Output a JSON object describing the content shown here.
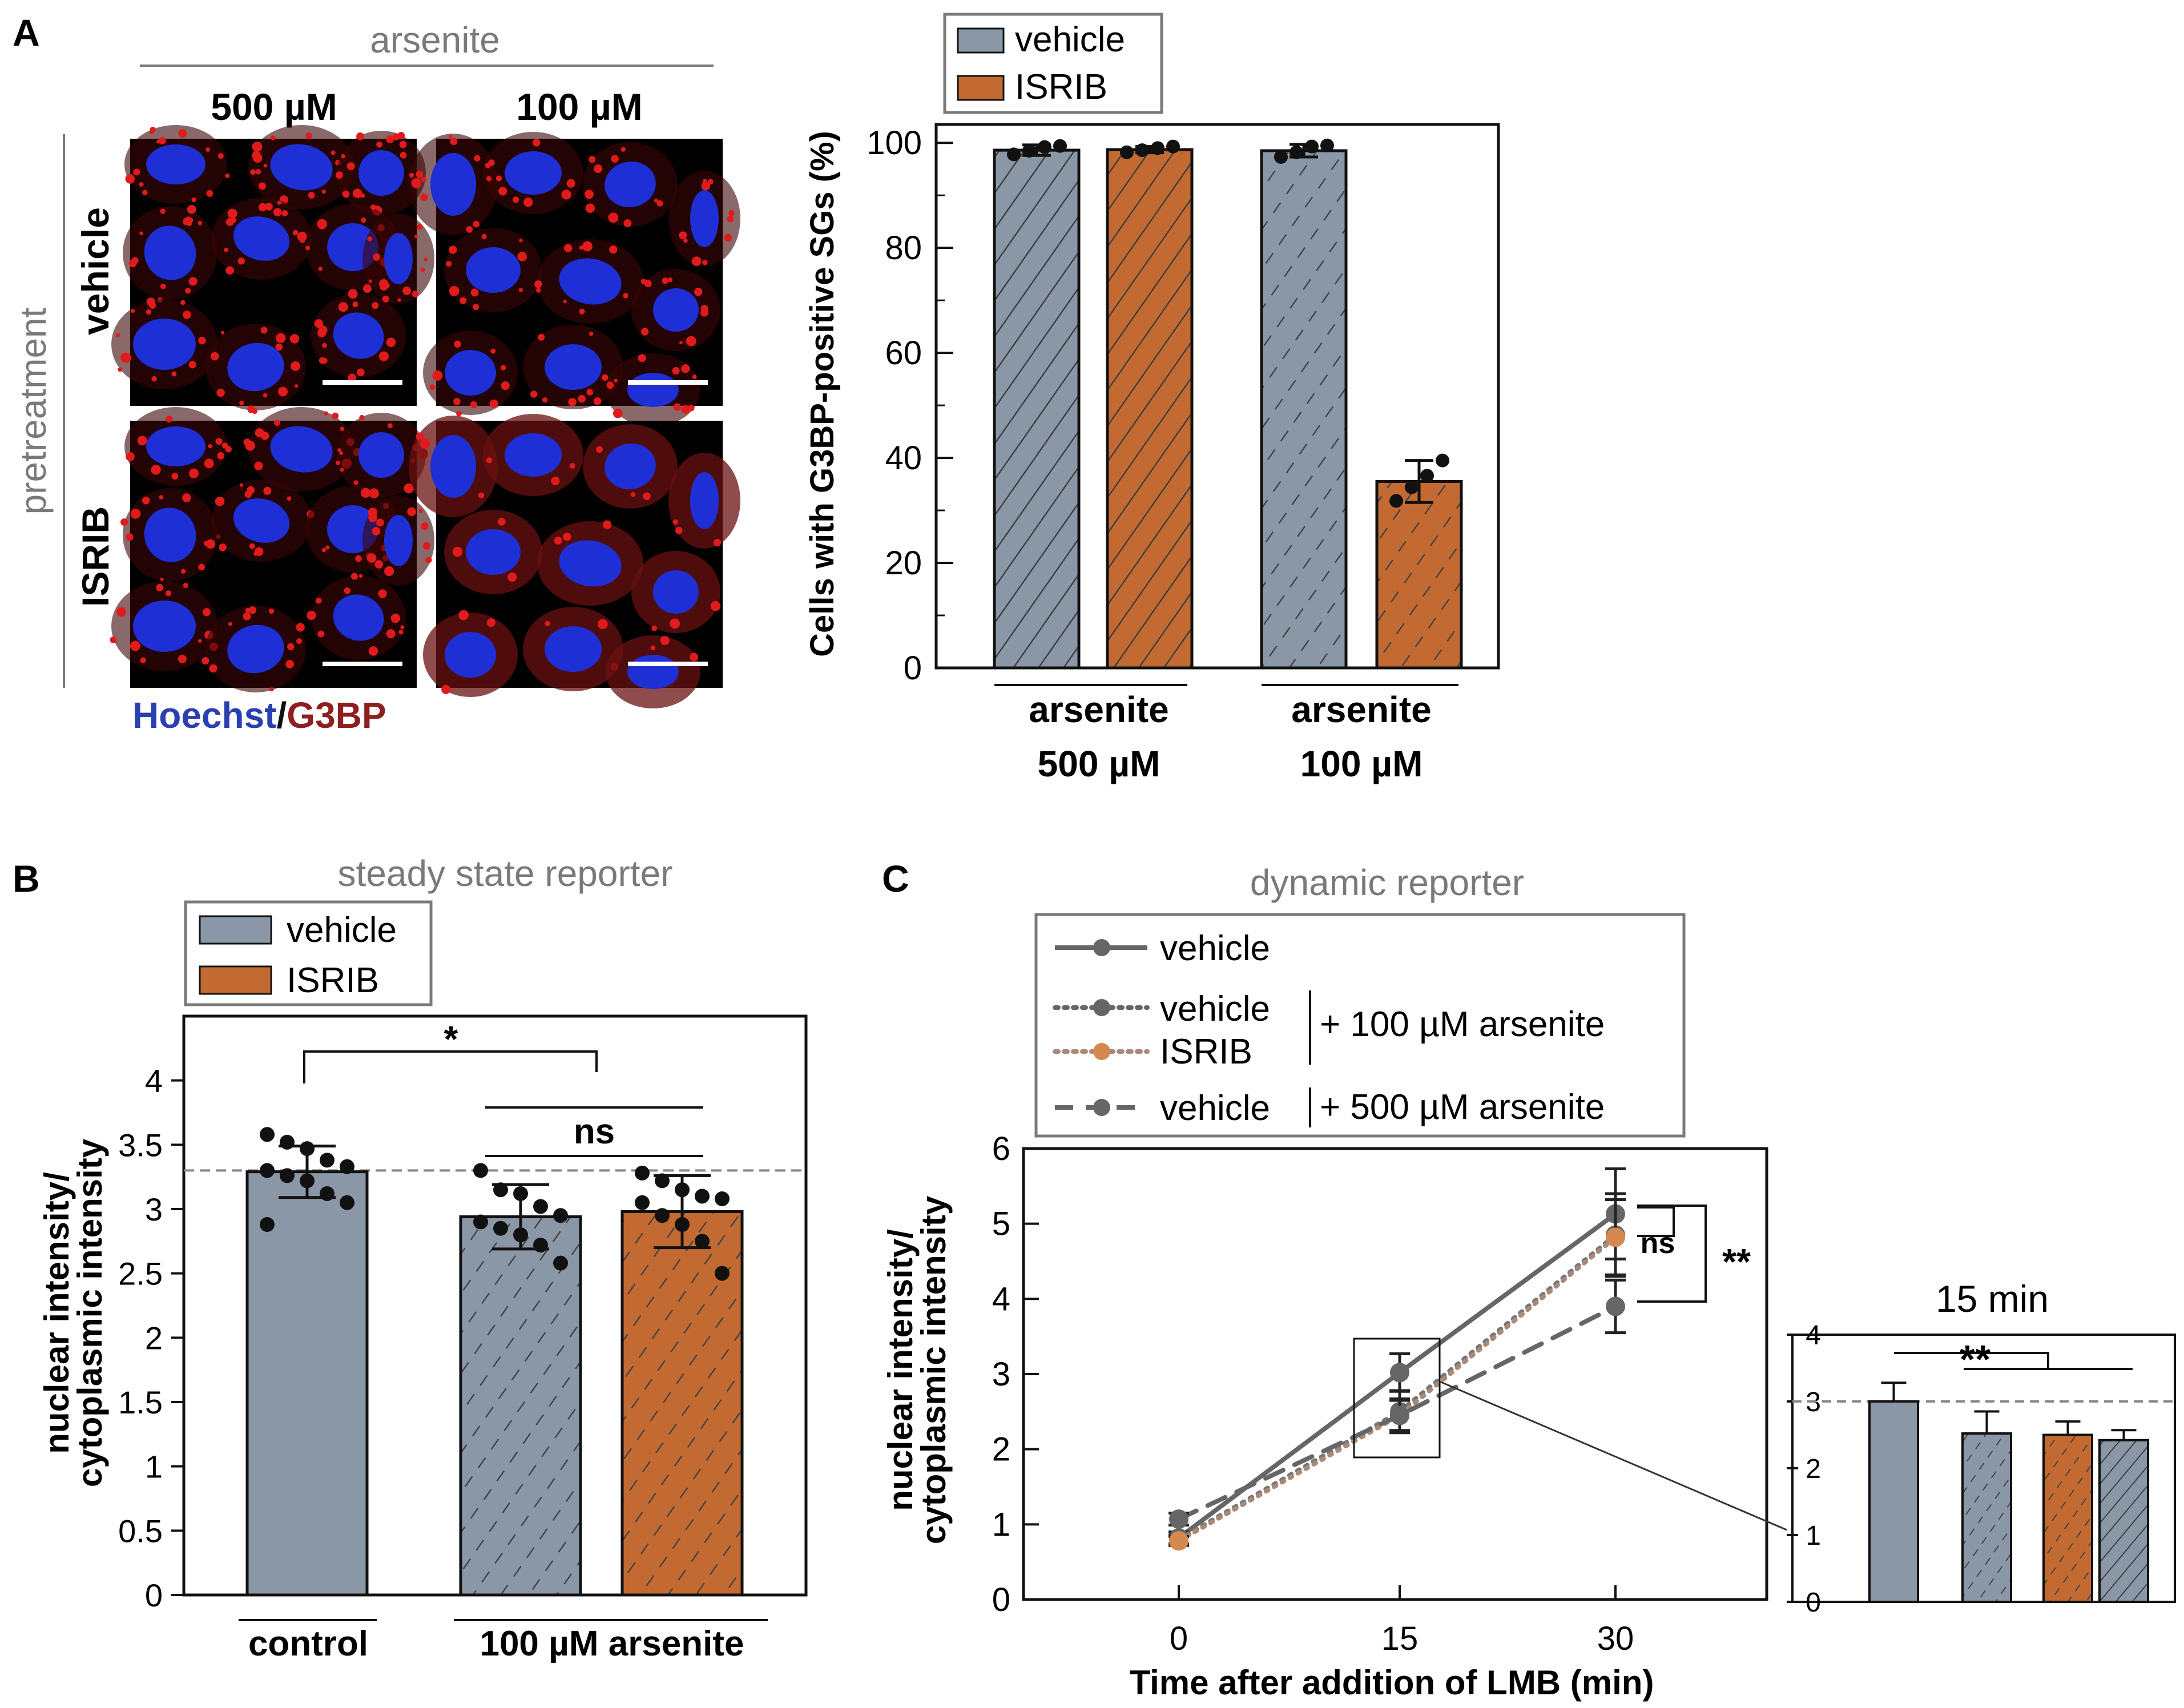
{
  "figure": {
    "colors": {
      "vehicle_fill": "#8a97a6",
      "isrib_fill": "#c26a31",
      "axis": "#111111",
      "gray_text": "#7a7a7a",
      "nucleus": "#1f2fd6",
      "g3bp": "#e11b1b",
      "cell_bg": "#000000",
      "hoechst_label": "#2a3fb0",
      "g3bp_label": "#8f1f1f",
      "line_gray": "#666666",
      "isrib_point": "#d6894f"
    },
    "panelA": {
      "label": "A",
      "header": "arsenite",
      "col_500": "500 µM",
      "col_100": "100 µM",
      "group_label": "pretreatment",
      "row_vehicle": "vehicle",
      "row_isrib": "ISRIB",
      "stain_hoechst": "Hoechst",
      "stain_sep": "/",
      "stain_g3bp": "G3BP",
      "micrographs": [
        {
          "id": "vehicle-500",
          "condition": "vehicle / 500 µM"
        },
        {
          "id": "vehicle-100",
          "condition": "vehicle / 100 µM"
        },
        {
          "id": "isrib-500",
          "condition": "ISRIB / 500 µM"
        },
        {
          "id": "isrib-100",
          "condition": "ISRIB / 100 µM"
        }
      ]
    },
    "panelC": {
      "label": "C",
      "legend_line1": "vehicle",
      "legend_dot_vehicle": "vehicle",
      "legend_dot_isrib": "ISRIB",
      "legend_100": "+ 100 µM arsenite",
      "legend_dash_vehicle": "vehicle",
      "legend_500": "+ 500 µM arsenite"
    }
  },
  "chart_data": [
    {
      "id": "A-bar",
      "type": "bar",
      "title": "",
      "ylabel": "Cells with G3BP-positive SGs (%)",
      "ylim": [
        0,
        100
      ],
      "yticks": [
        0,
        20,
        40,
        60,
        80,
        100
      ],
      "legend": [
        "vehicle",
        "ISRIB"
      ],
      "groups": [
        {
          "label_top": "arsenite",
          "label_bottom": "500 µM"
        },
        {
          "label_top": "arsenite",
          "label_bottom": "100 µM"
        }
      ],
      "bars": [
        {
          "group": 0,
          "series": "vehicle",
          "value": 98.6,
          "err": 1.0,
          "points": [
            97.8,
            98.5,
            99.2,
            99.4
          ]
        },
        {
          "group": 0,
          "series": "ISRIB",
          "value": 98.7,
          "err": 0.6,
          "points": [
            98.2,
            98.6,
            99.0,
            99.3
          ]
        },
        {
          "group": 1,
          "series": "vehicle",
          "value": 98.5,
          "err": 1.2,
          "points": [
            97.3,
            98.2,
            99.3,
            99.5
          ]
        },
        {
          "group": 1,
          "series": "ISRIB",
          "value": 35.5,
          "err": 4.0,
          "points": [
            31.8,
            34.4,
            36.6,
            39.5
          ]
        }
      ]
    },
    {
      "id": "B-bar",
      "type": "bar",
      "title": "steady state reporter",
      "panel_label": "B",
      "ylabel_line1": "nuclear intensity/",
      "ylabel_line2": "cytoplasmic intensity",
      "ylim": [
        0,
        4.5
      ],
      "yticks": [
        "0",
        "0.5",
        "1",
        "1.5",
        "2",
        "2.5",
        "3",
        "3.5",
        "4"
      ],
      "reference_line": 3.3,
      "legend": [
        "vehicle",
        "ISRIB"
      ],
      "categories": [
        {
          "label": "control"
        },
        {
          "label": "100 µM arsenite"
        }
      ],
      "bars": [
        {
          "series": "vehicle",
          "group": "control",
          "value": 3.29,
          "err": 0.2,
          "points": [
            3.58,
            3.52,
            3.47,
            3.38,
            3.33,
            3.3,
            3.26,
            3.22,
            3.12,
            3.05,
            2.88
          ]
        },
        {
          "series": "vehicle",
          "group": "100 µM arsenite",
          "value": 2.94,
          "err": 0.25,
          "points": [
            3.3,
            3.15,
            3.12,
            3.02,
            2.95,
            2.9,
            2.85,
            2.8,
            2.72,
            2.58
          ]
        },
        {
          "series": "ISRIB",
          "group": "100 µM arsenite",
          "value": 2.98,
          "err": 0.28,
          "points": [
            3.28,
            3.22,
            3.15,
            3.1,
            3.08,
            3.05,
            2.95,
            2.88,
            2.75,
            2.5
          ]
        }
      ],
      "significance": [
        {
          "text": "*"
        },
        {
          "text": "ns"
        }
      ]
    },
    {
      "id": "C-line",
      "type": "line",
      "title": "dynamic reporter",
      "xlabel": "Time after addition of LMB (min)",
      "ylabel_line1": "nuclear intensity/",
      "ylabel_line2": "cytoplasmic intensity",
      "x": [
        0,
        15,
        30
      ],
      "xticks": [
        "0",
        "15",
        "30"
      ],
      "ylim": [
        0,
        6
      ],
      "yticks": [
        "0",
        "1",
        "2",
        "3",
        "4",
        "5",
        "6"
      ],
      "series": [
        {
          "name": "vehicle",
          "style": "solid",
          "values": [
            0.82,
            3.02,
            5.13
          ],
          "err": [
            0.08,
            0.25,
            0.6
          ]
        },
        {
          "name": "vehicle + 100 µM arsenite",
          "style": "dotted",
          "values": [
            0.8,
            2.5,
            4.85
          ],
          "err": [
            0.06,
            0.28,
            0.55
          ]
        },
        {
          "name": "ISRIB + 100 µM arsenite",
          "style": "dotted-orange",
          "values": [
            0.78,
            2.45,
            4.82
          ],
          "err": [
            0.06,
            0.22,
            0.5
          ]
        },
        {
          "name": "vehicle + 500 µM arsenite",
          "style": "dashed",
          "values": [
            1.07,
            2.45,
            3.9
          ],
          "err": [
            0.08,
            0.2,
            0.35
          ]
        }
      ],
      "significance": [
        {
          "text": "ns"
        },
        {
          "text": "**"
        }
      ]
    },
    {
      "id": "C-inset",
      "type": "bar",
      "title": "15 min",
      "ylim": [
        0,
        4
      ],
      "yticks": [
        "0",
        "1",
        "2",
        "3",
        "4"
      ],
      "reference_line": 3.0,
      "bars": [
        {
          "name": "vehicle",
          "value": 3.0,
          "err": 0.28
        },
        {
          "name": "vehicle + 100 µM arsenite",
          "value": 2.52,
          "err": 0.33
        },
        {
          "name": "ISRIB + 100 µM arsenite",
          "value": 2.5,
          "err": 0.2
        },
        {
          "name": "vehicle + 500 µM arsenite",
          "value": 2.42,
          "err": 0.15
        }
      ],
      "significance": [
        {
          "text": "**"
        }
      ]
    }
  ]
}
